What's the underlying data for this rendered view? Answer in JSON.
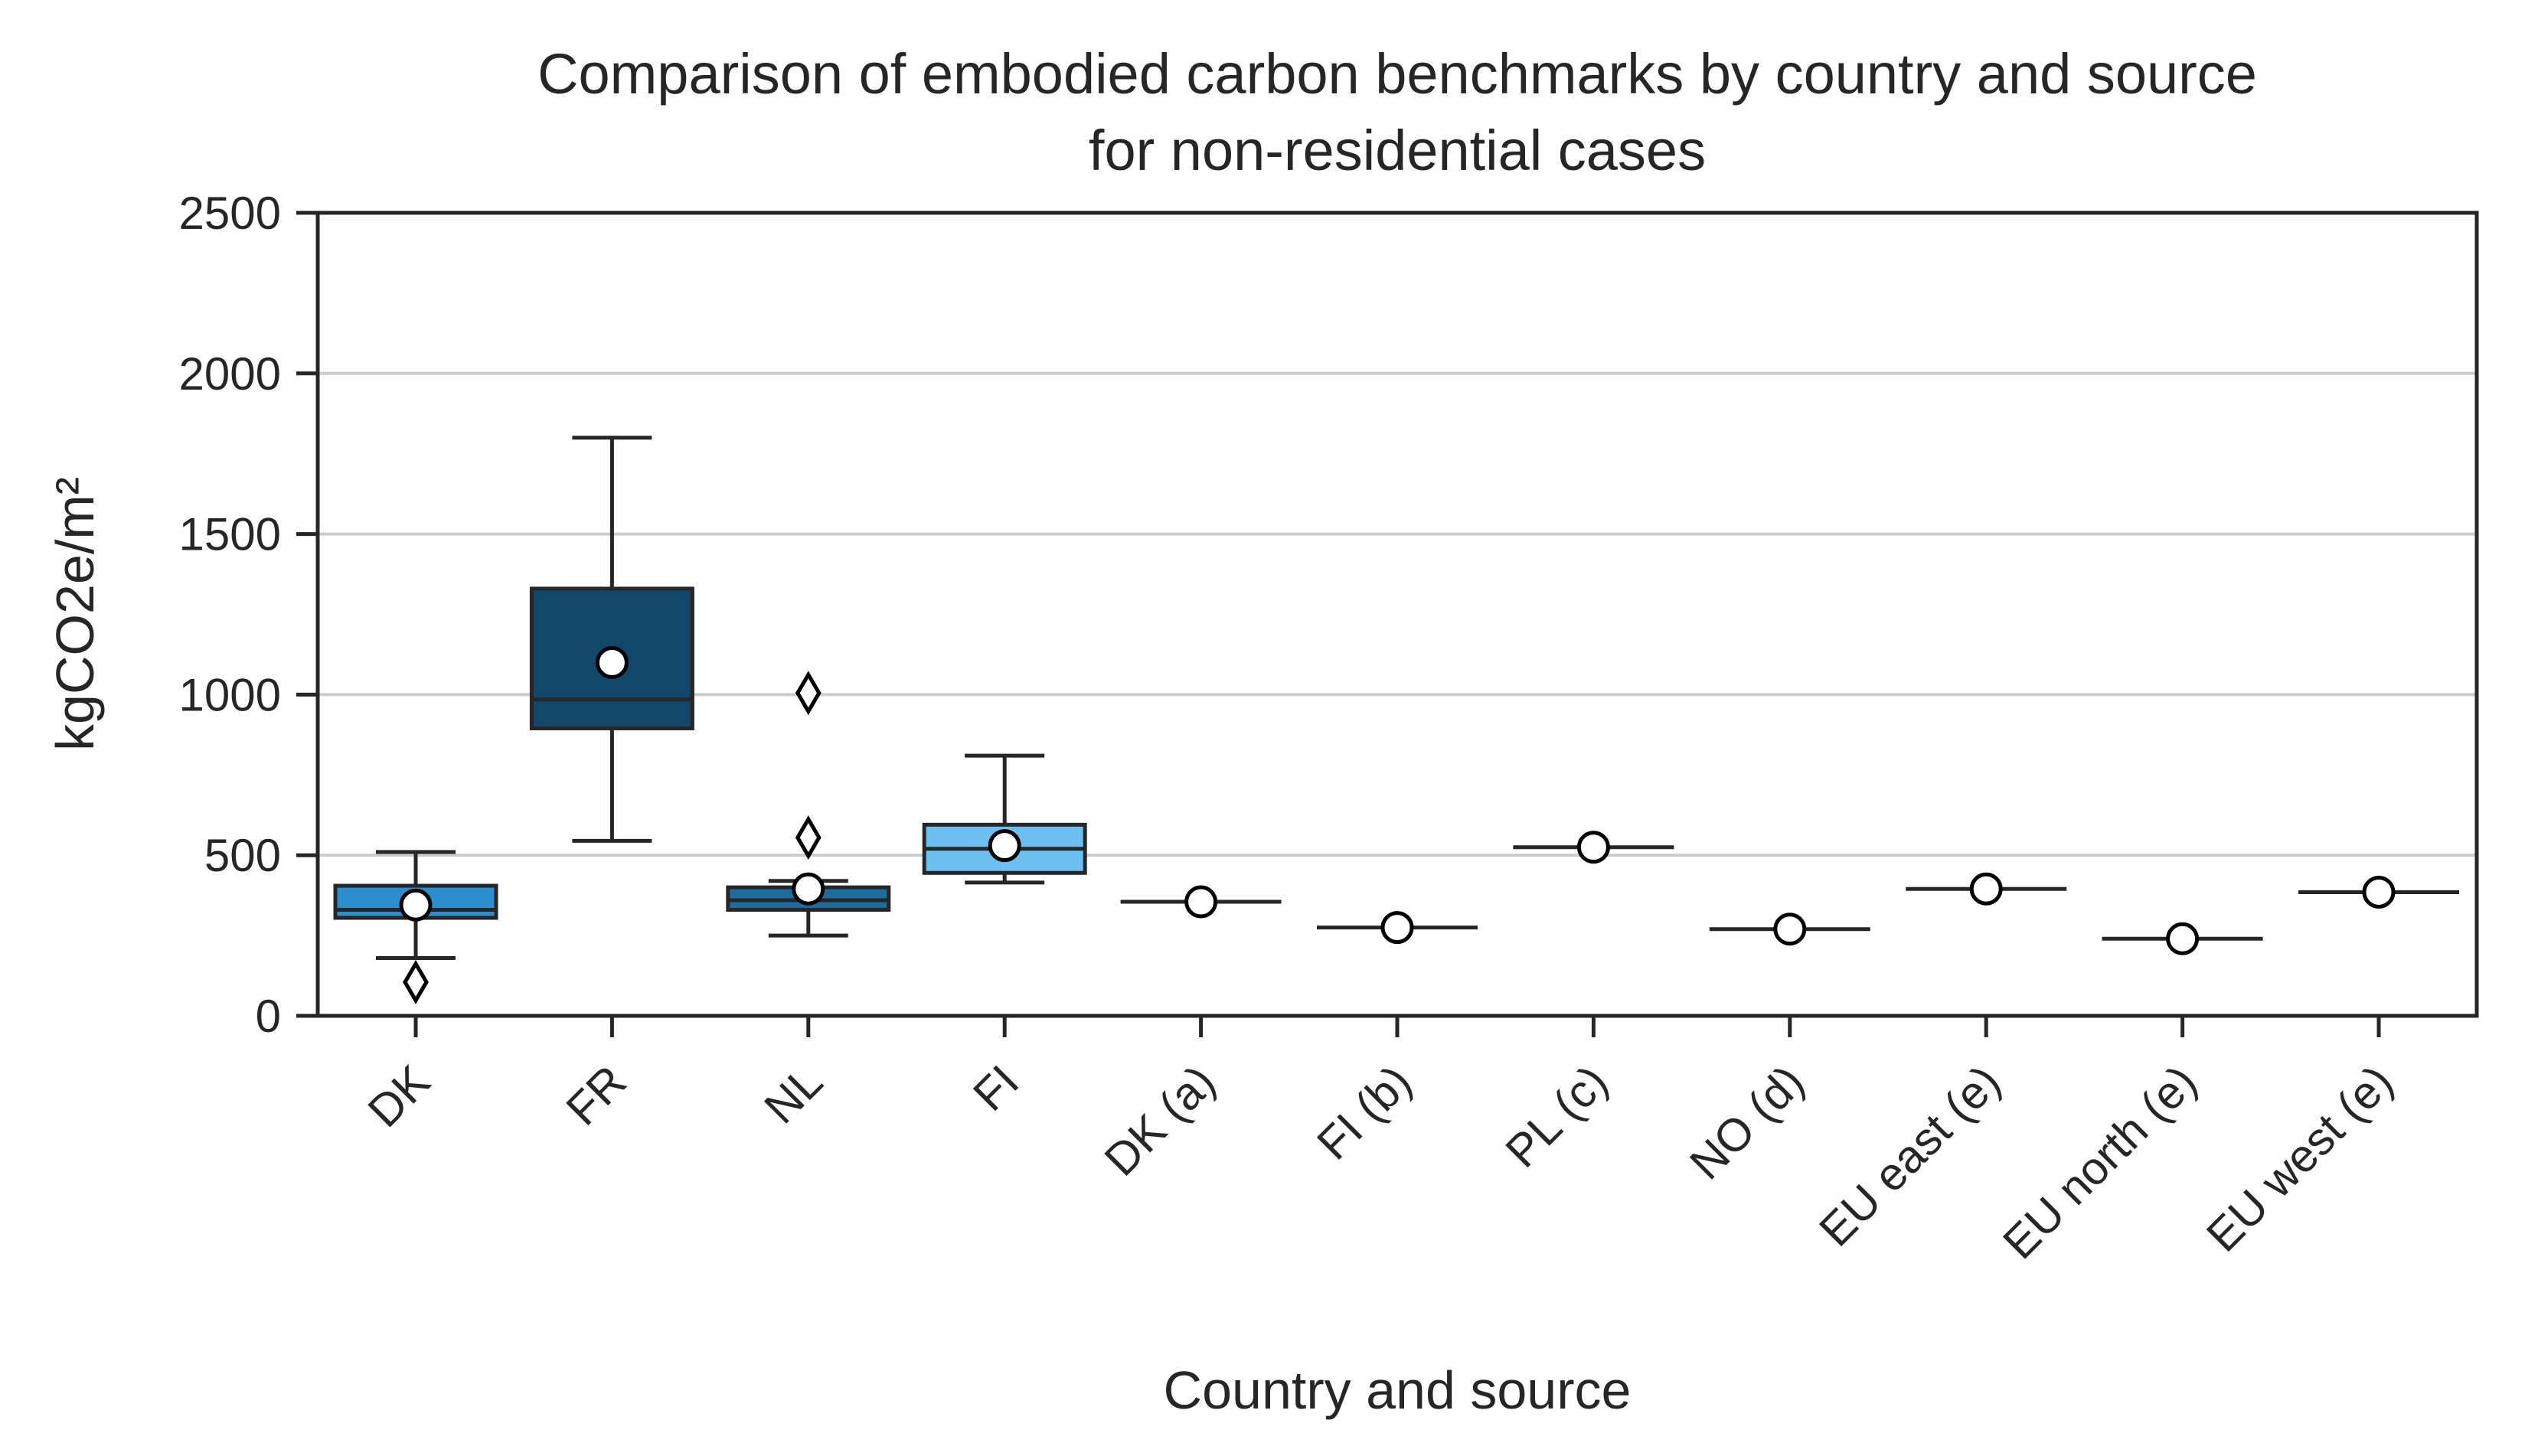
{
  "chart_data": {
    "type": "box",
    "title": "Comparison of embodied carbon benchmarks by country and source",
    "subtitle": "for non-residential cases",
    "xlabel": "Country and source",
    "ylabel": "kgCO2e/m²",
    "ylim": [
      0,
      2500
    ],
    "yticks": [
      0,
      500,
      1000,
      1500,
      2000,
      2500
    ],
    "grid": "horizontal",
    "categories": [
      "DK",
      "FR",
      "NL",
      "FI",
      "DK (a)",
      "FI (b)",
      "PL (c)",
      "NO (d)",
      "EU east (e)",
      "EU north (e)",
      "EU west (e)"
    ],
    "boxes": [
      {
        "category": "DK",
        "whisker_low": 180,
        "q1": 305,
        "median": 330,
        "q3": 405,
        "whisker_high": 510,
        "mean": 345,
        "outliers": [
          105
        ],
        "color": "#2b8ecf"
      },
      {
        "category": "FR",
        "whisker_low": 545,
        "q1": 895,
        "median": 985,
        "q3": 1330,
        "whisker_high": 1800,
        "mean": 1100,
        "outliers": [],
        "color": "#12476a"
      },
      {
        "category": "NL",
        "whisker_low": 250,
        "q1": 330,
        "median": 360,
        "q3": 400,
        "whisker_high": 420,
        "mean": 395,
        "outliers": [
          555,
          1005
        ],
        "color": "#1e6b9d"
      },
      {
        "category": "FI",
        "whisker_low": 415,
        "q1": 445,
        "median": 520,
        "q3": 595,
        "whisker_high": 810,
        "mean": 530,
        "outliers": [],
        "color": "#6cc0ef"
      },
      {
        "category": "DK (a)",
        "whisker_low": 355,
        "q1": 355,
        "median": 355,
        "q3": 355,
        "whisker_high": 355,
        "mean": 355,
        "outliers": [],
        "color": "#ffffff"
      },
      {
        "category": "FI (b)",
        "whisker_low": 275,
        "q1": 275,
        "median": 275,
        "q3": 275,
        "whisker_high": 275,
        "mean": 275,
        "outliers": [],
        "color": "#ffffff"
      },
      {
        "category": "PL (c)",
        "whisker_low": 525,
        "q1": 525,
        "median": 525,
        "q3": 525,
        "whisker_high": 525,
        "mean": 525,
        "outliers": [],
        "color": "#ffffff"
      },
      {
        "category": "NO (d)",
        "whisker_low": 270,
        "q1": 270,
        "median": 270,
        "q3": 270,
        "whisker_high": 270,
        "mean": 270,
        "outliers": [],
        "color": "#ffffff"
      },
      {
        "category": "EU east (e)",
        "whisker_low": 395,
        "q1": 395,
        "median": 395,
        "q3": 395,
        "whisker_high": 395,
        "mean": 395,
        "outliers": [],
        "color": "#ffffff"
      },
      {
        "category": "EU north (e)",
        "whisker_low": 240,
        "q1": 240,
        "median": 240,
        "q3": 240,
        "whisker_high": 240,
        "mean": 240,
        "outliers": [],
        "color": "#ffffff"
      },
      {
        "category": "EU west (e)",
        "whisker_low": 385,
        "q1": 385,
        "median": 385,
        "q3": 385,
        "whisker_high": 385,
        "mean": 385,
        "outliers": [],
        "color": "#ffffff"
      }
    ],
    "colors": {
      "line": "#262626",
      "grid": "#cccccc",
      "mean_marker_fill": "#ffffff"
    }
  }
}
